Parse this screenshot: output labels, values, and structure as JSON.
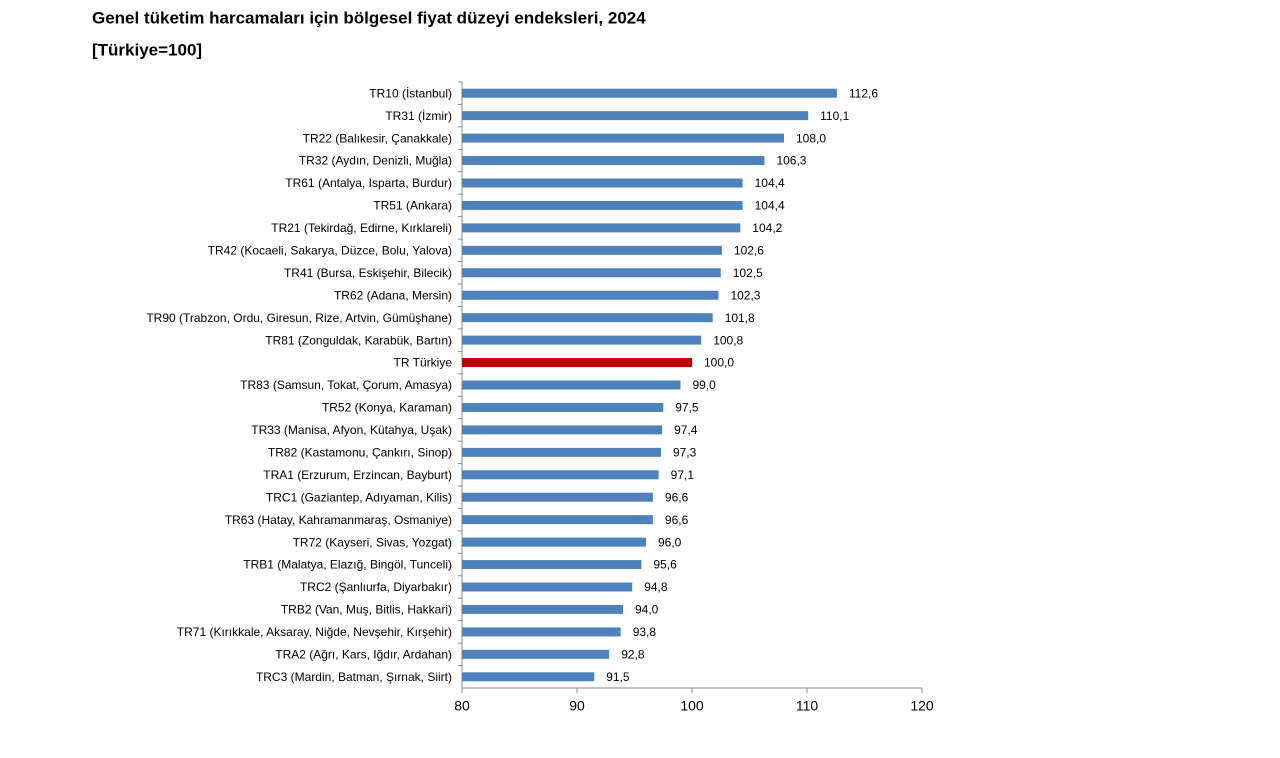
{
  "chart_data": {
    "type": "barh",
    "title": "Genel tüketim harcamaları için bölgesel fiyat düzeyi endeksleri, 2024",
    "subtitle": "[Türkiye=100]",
    "categories": [
      "TR10 (İstanbul)",
      "TR31 (İzmir)",
      "TR22 (Balıkesir, Çanakkale)",
      "TR32 (Aydın, Denizli, Muğla)",
      "TR61 (Antalya, Isparta, Burdur)",
      "TR51 (Ankara)",
      "TR21 (Tekirdağ, Edirne, Kırklareli)",
      "TR42 (Kocaeli, Sakarya, Düzce, Bolu, Yalova)",
      "TR41 (Bursa, Eskişehir, Bilecik)",
      "TR62 (Adana, Mersin)",
      "TR90 (Trabzon, Ordu, Giresun, Rize, Artvin, Gümüşhane)",
      "TR81 (Zonguldak, Karabük, Bartın)",
      "TR Türkiye",
      "TR83 (Samsun, Tokat, Çorum, Amasya)",
      "TR52 (Konya, Karaman)",
      "TR33 (Manisa, Afyon, Kütahya, Uşak)",
      "TR82 (Kastamonu, Çankırı, Sinop)",
      "TRA1 (Erzurum, Erzincan, Bayburt)",
      "TRC1 (Gaziantep, Adıyaman, Kilis)",
      "TR63 (Hatay, Kahramanmaraş, Osmaniye)",
      "TR72 (Kayseri, Sivas, Yozgat)",
      "TRB1 (Malatya, Elazığ, Bingöl, Tunceli)",
      "TRC2 (Şanlıurfa, Diyarbakır)",
      "TRB2 (Van, Muş, Bitlis, Hakkari)",
      "TR71 (Kırıkkale, Aksaray, Niğde, Nevşehir, Kırşehir)",
      "TRA2 (Ağrı, Kars, Iğdır, Ardahan)",
      "TRC3 (Mardin, Batman, Şırnak, Siirt)"
    ],
    "values": [
      112.6,
      110.1,
      108.0,
      106.3,
      104.4,
      104.4,
      104.2,
      102.6,
      102.5,
      102.3,
      101.8,
      100.8,
      100.0,
      99.0,
      97.5,
      97.4,
      97.3,
      97.1,
      96.6,
      96.6,
      96.0,
      95.6,
      94.8,
      94.0,
      93.8,
      92.8,
      91.5
    ],
    "value_labels": [
      "112,6",
      "110,1",
      "108,0",
      "106,3",
      "104,4",
      "104,4",
      "104,2",
      "102,6",
      "102,5",
      "102,3",
      "101,8",
      "100,8",
      "100,0",
      "99,0",
      "97,5",
      "97,4",
      "97,3",
      "97,1",
      "96,6",
      "96,6",
      "96,0",
      "95,6",
      "94,8",
      "94,0",
      "93,8",
      "92,8",
      "91,5"
    ],
    "colors": [
      "#4f81bd",
      "#4f81bd",
      "#4f81bd",
      "#4f81bd",
      "#4f81bd",
      "#4f81bd",
      "#4f81bd",
      "#4f81bd",
      "#4f81bd",
      "#4f81bd",
      "#4f81bd",
      "#4f81bd",
      "#c00000",
      "#4f81bd",
      "#4f81bd",
      "#4f81bd",
      "#4f81bd",
      "#4f81bd",
      "#4f81bd",
      "#4f81bd",
      "#4f81bd",
      "#4f81bd",
      "#4f81bd",
      "#4f81bd",
      "#4f81bd",
      "#4f81bd",
      "#4f81bd"
    ],
    "xlim": [
      80,
      120
    ],
    "xticks": [
      80,
      90,
      100,
      110,
      120
    ],
    "grid": false
  }
}
